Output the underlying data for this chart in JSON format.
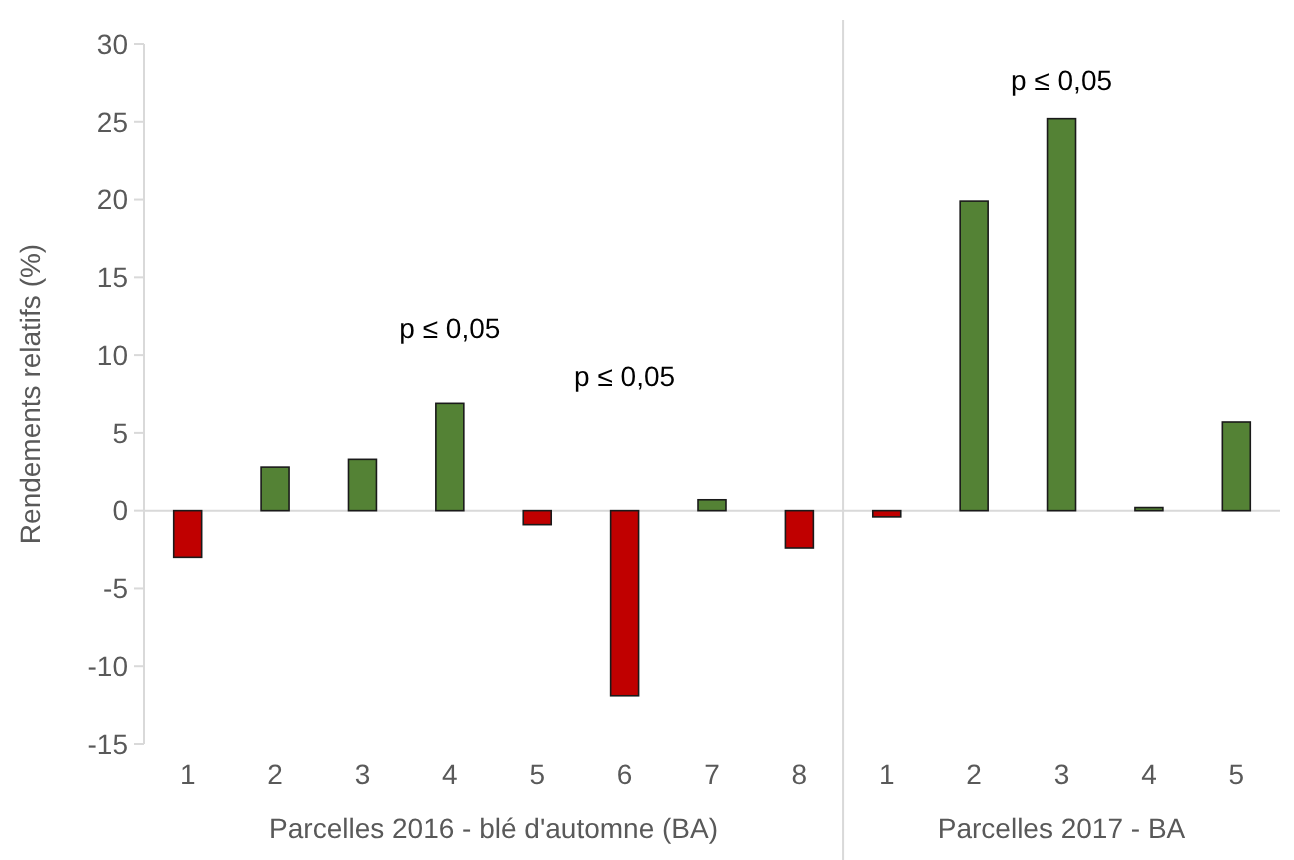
{
  "chart_data": {
    "type": "bar",
    "ylabel": "Rendements relatifs (%)",
    "categories": [
      "1",
      "2",
      "3",
      "4",
      "5",
      "6",
      "7",
      "8",
      "1",
      "2",
      "3",
      "4",
      "5"
    ],
    "values": [
      -3,
      2.8,
      3.3,
      6.9,
      -0.9,
      -11.9,
      0.7,
      -2.4,
      -0.4,
      19.9,
      25.2,
      0.2,
      5.7
    ],
    "colors": [
      "#c00000",
      "#548235",
      "#548235",
      "#548235",
      "#c00000",
      "#c00000",
      "#548235",
      "#c00000",
      "#c00000",
      "#548235",
      "#548235",
      "#548235",
      "#548235"
    ],
    "ylim": [
      -15,
      30
    ],
    "yticks": [
      -15,
      -10,
      -5,
      0,
      5,
      10,
      15,
      20,
      25,
      30
    ],
    "annotations": [
      "p ≤ 0,05",
      "p ≤ 0,05",
      "p ≤ 0,05",
      "Parcelles 2016 - blé d'automne (BA)",
      "Parcelles 2017 - BA"
    ]
  }
}
